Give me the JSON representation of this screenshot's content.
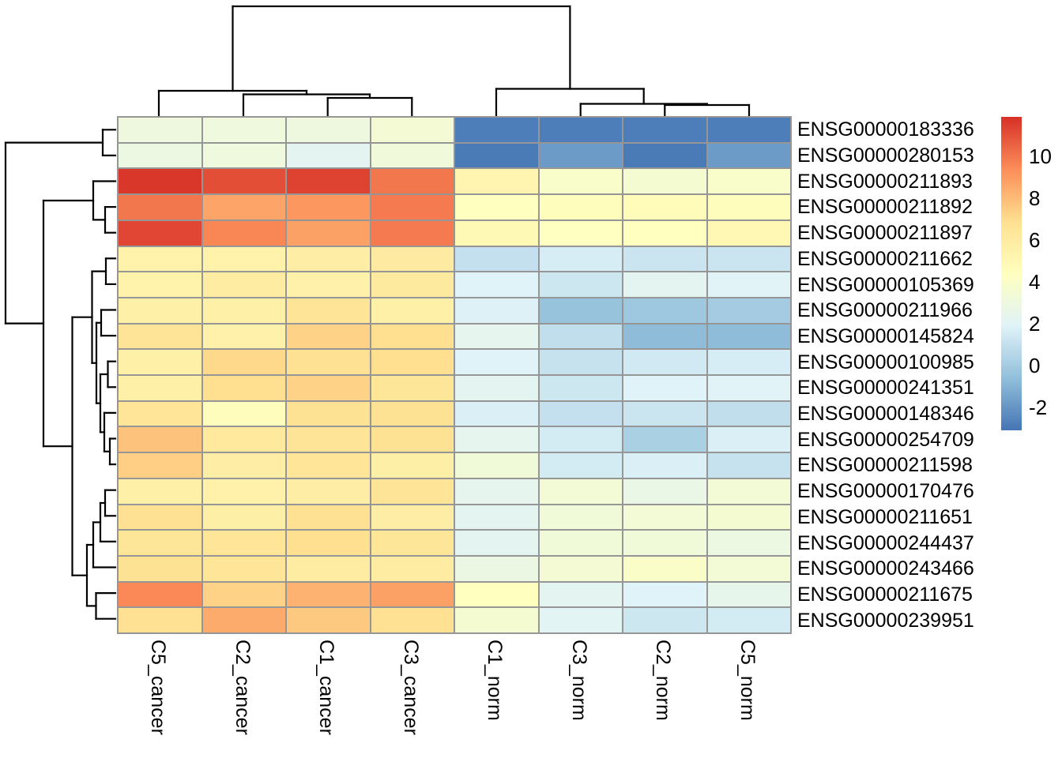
{
  "chart_data": {
    "type": "heatmap",
    "title": "",
    "columns": [
      "C5_cancer",
      "C2_cancer",
      "C1_cancer",
      "C3_cancer",
      "C1_norm",
      "C3_norm",
      "C2_norm",
      "C5_norm"
    ],
    "rows": [
      "ENSG00000183336",
      "ENSG00000280153",
      "ENSG00000211893",
      "ENSG00000211892",
      "ENSG00000211897",
      "ENSG00000211662",
      "ENSG00000105369",
      "ENSG00000211966",
      "ENSG00000145824",
      "ENSG00000100985",
      "ENSG00000241351",
      "ENSG00000148346",
      "ENSG00000254709",
      "ENSG00000211598",
      "ENSG00000170476",
      "ENSG00000211651",
      "ENSG00000244437",
      "ENSG00000243466",
      "ENSG00000211675",
      "ENSG00000239951"
    ],
    "values": [
      [
        3.0,
        3.1,
        3.0,
        3.5,
        -2.8,
        -2.8,
        -2.8,
        -2.8
      ],
      [
        2.9,
        3.1,
        2.2,
        3.2,
        -2.9,
        -1.8,
        -2.9,
        -1.8
      ],
      [
        11.7,
        11.1,
        11.4,
        10.0,
        5.2,
        3.9,
        3.6,
        3.9
      ],
      [
        10.0,
        8.7,
        9.1,
        9.9,
        4.4,
        4.6,
        4.7,
        4.6
      ],
      [
        11.3,
        9.6,
        8.8,
        9.9,
        4.9,
        4.3,
        4.4,
        5.0
      ],
      [
        5.4,
        5.4,
        5.8,
        6.0,
        1.0,
        1.6,
        1.2,
        1.2
      ],
      [
        5.4,
        5.9,
        5.5,
        6.1,
        1.9,
        1.3,
        2.2,
        2.0
      ],
      [
        5.6,
        5.6,
        6.6,
        5.6,
        1.8,
        -0.4,
        -0.2,
        0.0
      ],
      [
        6.6,
        5.5,
        7.3,
        6.9,
        2.4,
        0.9,
        -0.7,
        -0.7
      ],
      [
        5.6,
        7.1,
        6.8,
        6.9,
        1.9,
        1.1,
        1.4,
        1.6
      ],
      [
        5.6,
        6.9,
        7.3,
        6.4,
        2.2,
        1.3,
        1.9,
        2.0
      ],
      [
        6.5,
        4.6,
        6.7,
        6.7,
        1.7,
        1.0,
        1.2,
        0.9
      ],
      [
        7.8,
        6.2,
        6.6,
        6.7,
        2.4,
        1.5,
        0.2,
        1.7
      ],
      [
        7.4,
        5.8,
        6.5,
        5.7,
        3.3,
        1.5,
        1.7,
        1.1
      ],
      [
        5.6,
        5.5,
        5.8,
        6.6,
        2.4,
        3.4,
        2.7,
        3.4
      ],
      [
        6.8,
        5.7,
        6.8,
        5.8,
        2.2,
        3.3,
        3.4,
        3.6
      ],
      [
        6.4,
        6.5,
        6.9,
        6.4,
        2.2,
        3.3,
        3.3,
        2.9
      ],
      [
        6.7,
        6.5,
        5.9,
        5.9,
        2.8,
        3.5,
        4.0,
        3.4
      ],
      [
        9.5,
        7.3,
        8.3,
        8.8,
        4.4,
        2.2,
        1.9,
        2.5
      ],
      [
        6.8,
        8.5,
        7.6,
        6.8,
        3.6,
        2.1,
        1.3,
        1.5
      ]
    ],
    "color_scale": {
      "name": "RdYlBu-reversed",
      "domain": [
        -3.1,
        11.9
      ],
      "anchors": [
        {
          "value": -3.1,
          "color": "#4575B4"
        },
        {
          "value": -0.6,
          "color": "#91BFDB"
        },
        {
          "value": 1.9,
          "color": "#E0F3F8"
        },
        {
          "value": 4.4,
          "color": "#FFFFBF"
        },
        {
          "value": 6.9,
          "color": "#FEE090"
        },
        {
          "value": 9.4,
          "color": "#FC8D59"
        },
        {
          "value": 11.9,
          "color": "#D73027"
        }
      ],
      "grid_color": "#969696",
      "dendrogram_color": "#000000"
    },
    "legend": {
      "tick_values": [
        10,
        8,
        6,
        4,
        2,
        0,
        -2
      ],
      "tick_labels": [
        "10",
        "8",
        "6",
        "4",
        "2",
        "0",
        "-2"
      ]
    },
    "col_dendrogram_segments": [
      [
        414.7,
        124,
        414.7,
        146
      ],
      [
        521.3,
        124,
        521.3,
        146
      ],
      [
        414.7,
        124,
        521.3,
        124
      ],
      [
        308,
        119.5,
        308,
        146
      ],
      [
        468,
        119.5,
        468,
        124
      ],
      [
        308,
        119.5,
        468,
        119.5
      ],
      [
        201,
        115,
        201,
        146
      ],
      [
        388,
        115,
        388,
        119.5
      ],
      [
        201,
        115,
        388,
        115
      ],
      [
        841.3,
        133,
        841.3,
        146
      ],
      [
        948,
        133,
        948,
        146
      ],
      [
        841.3,
        133,
        948,
        133
      ],
      [
        734.7,
        131.5,
        734.7,
        146
      ],
      [
        894.7,
        131.5,
        894.7,
        133
      ],
      [
        734.7,
        131.5,
        894.7,
        131.5
      ],
      [
        628,
        112.5,
        628,
        146
      ],
      [
        814.7,
        112.5,
        814.7,
        131.5
      ],
      [
        628,
        112.5,
        814.7,
        112.5
      ],
      [
        294.5,
        8,
        294.5,
        115
      ],
      [
        721.4,
        8,
        721.4,
        112.5
      ],
      [
        294.5,
        8,
        721.4,
        8
      ]
    ],
    "row_dendrogram_segments": [
      [
        130,
        164.3,
        146,
        164.3
      ],
      [
        130,
        196.9,
        146,
        196.9
      ],
      [
        130,
        164.3,
        130,
        196.9
      ],
      [
        133,
        262.1,
        146,
        262.1
      ],
      [
        133,
        294.7,
        146,
        294.7
      ],
      [
        133,
        262.1,
        133,
        294.7
      ],
      [
        118,
        229.5,
        146,
        229.5
      ],
      [
        118,
        278.4,
        133,
        278.4
      ],
      [
        118,
        229.5,
        118,
        278.4
      ],
      [
        134,
        327.3,
        146,
        327.3
      ],
      [
        134,
        359.9,
        146,
        359.9
      ],
      [
        134,
        327.3,
        134,
        359.9
      ],
      [
        128,
        392.5,
        146,
        392.5
      ],
      [
        128,
        425.1,
        146,
        425.1
      ],
      [
        128,
        392.5,
        128,
        425.1
      ],
      [
        136.5,
        457.7,
        146,
        457.7
      ],
      [
        136.5,
        490.3,
        146,
        490.3
      ],
      [
        136.5,
        457.7,
        136.5,
        490.3
      ],
      [
        139,
        555.5,
        146,
        555.5
      ],
      [
        139,
        588.1,
        146,
        588.1
      ],
      [
        139,
        555.5,
        139,
        588.1
      ],
      [
        132,
        522.9,
        146,
        522.9
      ],
      [
        132,
        571.8,
        139,
        571.8
      ],
      [
        132,
        522.9,
        132,
        571.8
      ],
      [
        127,
        474,
        136.5,
        474
      ],
      [
        127,
        547.35,
        132,
        547.35
      ],
      [
        127,
        474,
        127,
        547.35
      ],
      [
        122,
        408.8,
        128,
        408.8
      ],
      [
        122,
        510.7,
        127,
        510.7
      ],
      [
        122,
        408.8,
        122,
        510.7
      ],
      [
        116.5,
        343.6,
        134,
        343.6
      ],
      [
        116.5,
        459.75,
        122,
        459.75
      ],
      [
        116.5,
        343.6,
        116.5,
        459.75
      ],
      [
        133,
        620.7,
        146,
        620.7
      ],
      [
        133,
        653.3,
        146,
        653.3
      ],
      [
        133,
        620.7,
        133,
        653.3
      ],
      [
        127,
        637,
        133,
        637
      ],
      [
        127,
        685.9,
        146,
        685.9
      ],
      [
        127,
        637,
        127,
        685.9
      ],
      [
        118,
        661.45,
        127,
        661.45
      ],
      [
        118,
        718.5,
        146,
        718.5
      ],
      [
        118,
        661.45,
        118,
        718.5
      ],
      [
        121.5,
        751.1,
        146,
        751.1
      ],
      [
        121.5,
        783.7,
        146,
        783.7
      ],
      [
        121.5,
        751.1,
        121.5,
        783.7
      ],
      [
        110,
        690,
        118,
        690
      ],
      [
        110,
        767.4,
        121.5,
        767.4
      ],
      [
        110,
        690,
        110,
        767.4
      ],
      [
        91.5,
        401.7,
        116.5,
        401.7
      ],
      [
        91.5,
        728.7,
        110,
        728.7
      ],
      [
        91.5,
        401.7,
        91.5,
        728.7
      ],
      [
        55,
        254,
        118,
        254
      ],
      [
        55,
        565.2,
        91.5,
        565.2
      ],
      [
        55,
        254,
        55,
        565.2
      ],
      [
        7,
        180.6,
        130,
        180.6
      ],
      [
        7,
        409.6,
        55,
        409.6
      ],
      [
        7,
        180.6,
        7,
        409.6
      ]
    ]
  }
}
